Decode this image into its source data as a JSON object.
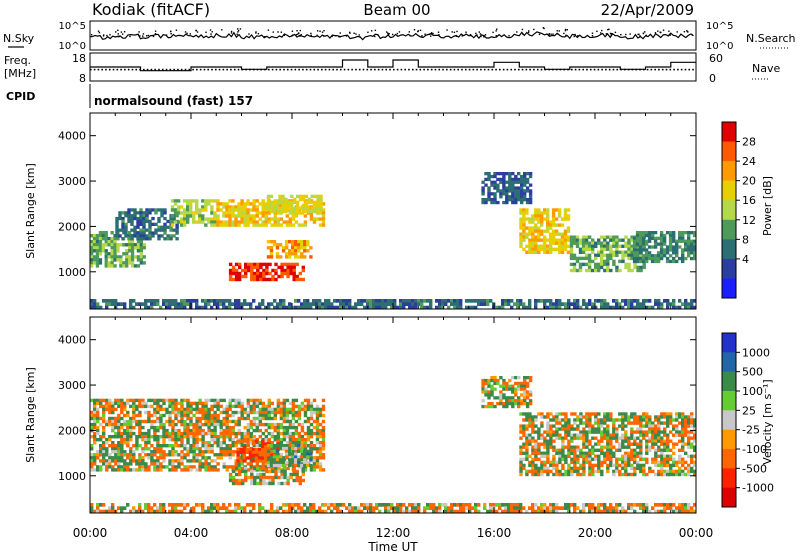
{
  "header": {
    "station": "Kodiak (fitACF)",
    "beam": "Beam 00",
    "date": "22/Apr/2009"
  },
  "noise_panel": {
    "left_label": "N.Sky",
    "right_label": "N.Search",
    "left_ticks": [
      "10^5",
      "10^0"
    ],
    "right_ticks": [
      "10^5",
      "10^0"
    ]
  },
  "freq_panel": {
    "left_label_line1": "Freq.",
    "left_label_line2": "[MHz]",
    "right_label": "Nave",
    "left_ticks": [
      "18",
      "8"
    ],
    "right_ticks": [
      "60",
      "0"
    ]
  },
  "cpid": {
    "label": "CPID",
    "value": "normalsound (fast) 157"
  },
  "power_panel": {
    "ylabel": "Slant Range [km]",
    "yticks": [
      "4000",
      "3000",
      "2000",
      "1000"
    ],
    "colorbar_label": "Power [dB]",
    "colorbar_ticks": [
      "28",
      "24",
      "20",
      "16",
      "12",
      "8",
      "4"
    ],
    "colorbar_colors": [
      "#e00000",
      "#ff5a00",
      "#ff9a00",
      "#e8d000",
      "#b5d84a",
      "#4e9a5a",
      "#2b6f73",
      "#2c3fa0",
      "#1a20ff"
    ]
  },
  "velocity_panel": {
    "ylabel": "Slant Range [km]",
    "yticks": [
      "4000",
      "3000",
      "2000",
      "1000"
    ],
    "colorbar_label": "Velocity [m s⁻¹]",
    "colorbar_ticks": [
      "1000",
      "500",
      "100",
      "25",
      "-25",
      "-100",
      "-500",
      "-1000"
    ],
    "colorbar_colors": [
      "#2233cc",
      "#2266aa",
      "#3a8a4a",
      "#66cc33",
      "#c8c8c8",
      "#ff9900",
      "#ff6600",
      "#ff2200",
      "#dd0000"
    ]
  },
  "time_axis": {
    "xlabel": "Time UT",
    "ticks": [
      "00:00",
      "04:00",
      "08:00",
      "12:00",
      "16:00",
      "20:00",
      "00:00"
    ]
  },
  "chart_data": [
    {
      "type": "heatmap",
      "title": "Power [dB]",
      "ylabel": "Slant Range [km]",
      "xlabel": "Time UT",
      "x_range_hours": [
        0,
        24
      ],
      "ylim": [
        180,
        4500
      ],
      "value_range": [
        3,
        30
      ],
      "blobs": [
        {
          "t0": 0.0,
          "t1": 2.2,
          "r0": 1100,
          "r1": 1900,
          "value": 14
        },
        {
          "t0": 1.0,
          "t1": 3.5,
          "r0": 1700,
          "r1": 2400,
          "value": 10
        },
        {
          "t0": 3.2,
          "t1": 5.0,
          "r0": 2000,
          "r1": 2600,
          "value": 16
        },
        {
          "t0": 5.0,
          "t1": 9.3,
          "r0": 2000,
          "r1": 2600,
          "value": 20
        },
        {
          "t0": 7.0,
          "t1": 9.2,
          "r0": 2300,
          "r1": 2700,
          "value": 18
        },
        {
          "t0": 5.5,
          "t1": 8.5,
          "r0": 800,
          "r1": 1200,
          "value": 27
        },
        {
          "t0": 7.0,
          "t1": 8.8,
          "r0": 1300,
          "r1": 1700,
          "value": 22
        },
        {
          "t0": 15.5,
          "t1": 17.5,
          "r0": 2500,
          "r1": 3200,
          "value": 9
        },
        {
          "t0": 17.0,
          "t1": 19.0,
          "r0": 1400,
          "r1": 2400,
          "value": 20
        },
        {
          "t0": 19.0,
          "t1": 22.0,
          "r0": 1000,
          "r1": 1800,
          "value": 14
        },
        {
          "t0": 21.5,
          "t1": 24.0,
          "r0": 1200,
          "r1": 1900,
          "value": 12
        },
        {
          "t0": 0.0,
          "t1": 24.0,
          "r0": 180,
          "r1": 400,
          "value": 10
        }
      ]
    },
    {
      "type": "heatmap",
      "title": "Velocity [m s⁻¹]",
      "ylabel": "Slant Range [km]",
      "xlabel": "Time UT",
      "x_range_hours": [
        0,
        24
      ],
      "ylim": [
        180,
        4500
      ],
      "value_range": [
        -1000,
        1000
      ],
      "blobs": [
        {
          "t0": 0.0,
          "t1": 9.3,
          "r0": 1100,
          "r1": 2700,
          "value": 0
        },
        {
          "t0": 5.5,
          "t1": 8.5,
          "r0": 800,
          "r1": 1200,
          "value": 0
        },
        {
          "t0": 5.8,
          "t1": 7.5,
          "r0": 1300,
          "r1": 1800,
          "value": -300
        },
        {
          "t0": 7.0,
          "t1": 8.8,
          "r0": 1200,
          "r1": 1700,
          "value": 120
        },
        {
          "t0": 15.5,
          "t1": 17.5,
          "r0": 2500,
          "r1": 3200,
          "value": 0
        },
        {
          "t0": 17.0,
          "t1": 24.0,
          "r0": 1000,
          "r1": 2400,
          "value": 0
        },
        {
          "t0": 0.0,
          "t1": 24.0,
          "r0": 180,
          "r1": 400,
          "value": -60
        }
      ]
    },
    {
      "type": "line",
      "title": "N.Sky / N.Search",
      "x_range_hours": [
        0,
        24
      ],
      "series": [
        {
          "name": "N.Sky",
          "values": [
            2.2,
            2.4,
            2.3,
            2.5,
            2.4,
            2.6,
            2.3,
            2.4,
            2.5,
            2.3,
            2.2,
            2.4,
            2.6,
            2.5,
            2.4,
            2.3,
            2.5,
            2.8,
            2.6,
            2.4,
            2.5,
            2.3,
            2.4,
            2.5
          ]
        }
      ]
    },
    {
      "type": "line",
      "title": "Freq. / Nave",
      "x_range_hours": [
        0,
        24
      ],
      "series": [
        {
          "name": "Freq.",
          "values": [
            12,
            12,
            12,
            12,
            12,
            12,
            12,
            12,
            12,
            12,
            12,
            12,
            12,
            12,
            12,
            12,
            12,
            12,
            12,
            12,
            12,
            12,
            12,
            12
          ]
        },
        {
          "name": "Nave",
          "values": [
            30,
            30,
            22,
            22,
            30,
            30,
            25,
            30,
            30,
            30,
            45,
            30,
            45,
            30,
            30,
            30,
            40,
            30,
            25,
            30,
            30,
            25,
            30,
            40
          ]
        }
      ]
    }
  ]
}
